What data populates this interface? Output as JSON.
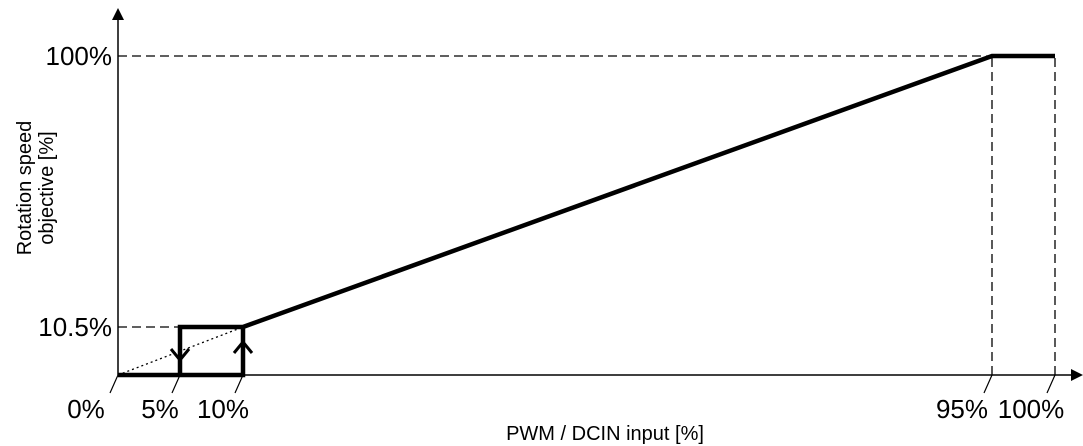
{
  "chart_data": {
    "type": "line",
    "title": "",
    "xlabel": "PWM / DCIN input [%]",
    "ylabel_lines": [
      "Rotation speed",
      "objective [%]"
    ],
    "xlim": [
      0,
      100
    ],
    "ylim": [
      0,
      100
    ],
    "x_ticks": [
      {
        "value": 0,
        "label": "0%"
      },
      {
        "value": 5,
        "label": "5%"
      },
      {
        "value": 10,
        "label": "10%"
      },
      {
        "value": 95,
        "label": "95%"
      },
      {
        "value": 100,
        "label": "100%"
      }
    ],
    "y_ticks": [
      {
        "value": 10.5,
        "label": "10.5%"
      },
      {
        "value": 100,
        "label": "100%"
      }
    ],
    "series": [
      {
        "style": "solid-thick",
        "points": [
          [
            0,
            0
          ],
          [
            5,
            0
          ],
          [
            10,
            0
          ],
          [
            10,
            10.5
          ],
          [
            5,
            10.5
          ],
          [
            5,
            0
          ],
          [
            10,
            0
          ],
          [
            10,
            10.5
          ],
          [
            95,
            100
          ],
          [
            100,
            100
          ]
        ]
      },
      {
        "style": "dotted",
        "points": [
          [
            0,
            0
          ],
          [
            10,
            10.5
          ]
        ]
      }
    ],
    "hysteresis_arrows": [
      {
        "x": 5,
        "direction": "down"
      },
      {
        "x": 10,
        "direction": "up"
      }
    ],
    "guides": [
      {
        "from": [
          0,
          100
        ],
        "to": [
          95,
          100
        ]
      },
      {
        "from": [
          0,
          10.5
        ],
        "to": [
          10,
          10.5
        ]
      },
      {
        "from": [
          95,
          0
        ],
        "to": [
          95,
          100
        ]
      },
      {
        "from": [
          100,
          0
        ],
        "to": [
          100,
          100
        ]
      }
    ],
    "grid": false,
    "legend": "none",
    "colors": {
      "line": "#000000",
      "guide": "#000000"
    }
  }
}
